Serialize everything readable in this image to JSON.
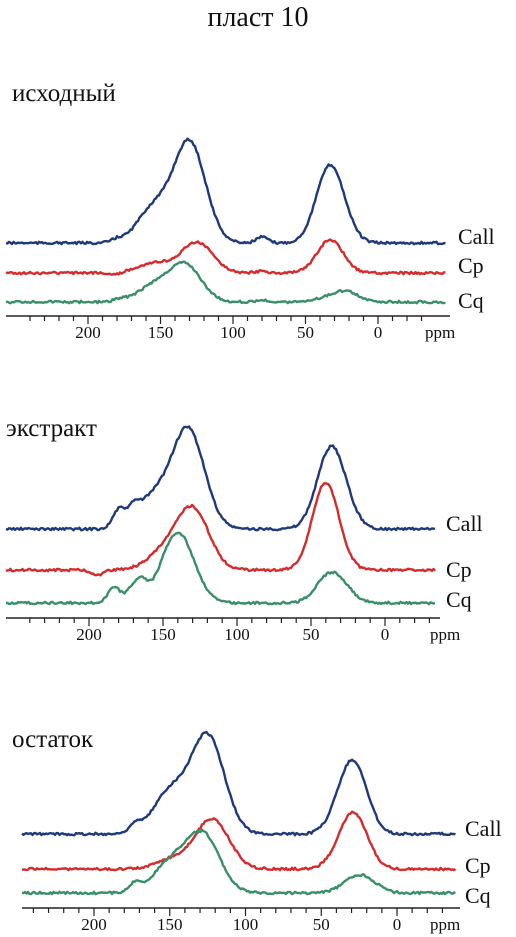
{
  "title": "пласт 10",
  "colors": {
    "Call": "#1f3a7a",
    "Cp": "#d42c2c",
    "Cq": "#3a8f6a"
  },
  "chart_data": [
    {
      "type": "line",
      "label": "исходный",
      "xlabel": "ppm",
      "xlim": [
        248,
        -40
      ],
      "x_reversed": true,
      "ticks": [
        "200",
        "150",
        "100",
        "50",
        "0"
      ],
      "tick_values": [
        200,
        150,
        100,
        50,
        0
      ],
      "series": [
        {
          "name": "Call",
          "peaks": [
            [
              130,
              100
            ],
            [
              155,
              34
            ],
            [
              180,
              3
            ],
            [
              80,
              6
            ],
            [
              35,
              55
            ],
            [
              28,
              28
            ]
          ],
          "baseline": 0
        },
        {
          "name": "Cp",
          "peaks": [
            [
              125,
              62
            ],
            [
              155,
              20
            ],
            [
              80,
              4
            ],
            [
              33,
              67
            ],
            [
              182,
              -4
            ]
          ],
          "baseline": 0
        },
        {
          "name": "Cq",
          "peaks": [
            [
              133,
              67
            ],
            [
              155,
              28
            ],
            [
              178,
              5
            ],
            [
              80,
              3
            ],
            [
              22,
              18
            ],
            [
              35,
              6
            ]
          ],
          "baseline": 0
        }
      ]
    },
    {
      "type": "line",
      "label": "экстракт",
      "xlabel": "ppm",
      "xlim": [
        248,
        -40
      ],
      "x_reversed": true,
      "ticks": [
        "200",
        "150",
        "100",
        "50",
        "0"
      ],
      "tick_values": [
        200,
        150,
        100,
        50,
        0
      ],
      "series": [
        {
          "name": "Call",
          "peaks": [
            [
              133,
              100
            ],
            [
              157,
              30
            ],
            [
              180,
              17
            ],
            [
              170,
              12
            ],
            [
              38,
              65
            ],
            [
              30,
              25
            ]
          ],
          "baseline": 0
        },
        {
          "name": "Cp",
          "peaks": [
            [
              130,
              45
            ],
            [
              150,
              12
            ],
            [
              40,
              65
            ],
            [
              195,
              -4
            ]
          ],
          "baseline": 0
        },
        {
          "name": "Cq",
          "peaks": [
            [
              140,
              80
            ],
            [
              165,
              22
            ],
            [
              183,
              18
            ],
            [
              172,
              12
            ],
            [
              38,
              26
            ],
            [
              30,
              12
            ]
          ],
          "baseline": 0
        }
      ]
    },
    {
      "type": "line",
      "label": "остаток",
      "xlabel": "ppm",
      "xlim": [
        248,
        -40
      ],
      "x_reversed": true,
      "ticks": [
        "200",
        "150",
        "100",
        "50",
        "0"
      ],
      "tick_values": [
        200,
        150,
        100,
        50,
        0
      ],
      "series": [
        {
          "name": "Call",
          "peaks": [
            [
              125,
              100
            ],
            [
              150,
              42
            ],
            [
              173,
              8
            ],
            [
              28,
              60
            ],
            [
              35,
              20
            ]
          ],
          "baseline": 0
        },
        {
          "name": "Cp",
          "peaks": [
            [
              122,
              70
            ],
            [
              148,
              14
            ],
            [
              28,
              67
            ],
            [
              35,
              15
            ]
          ],
          "baseline": 0
        },
        {
          "name": "Cq",
          "peaks": [
            [
              128,
              70
            ],
            [
              150,
              35
            ],
            [
              173,
              10
            ],
            [
              22,
              16
            ],
            [
              30,
              8
            ]
          ],
          "baseline": 0
        }
      ]
    }
  ]
}
